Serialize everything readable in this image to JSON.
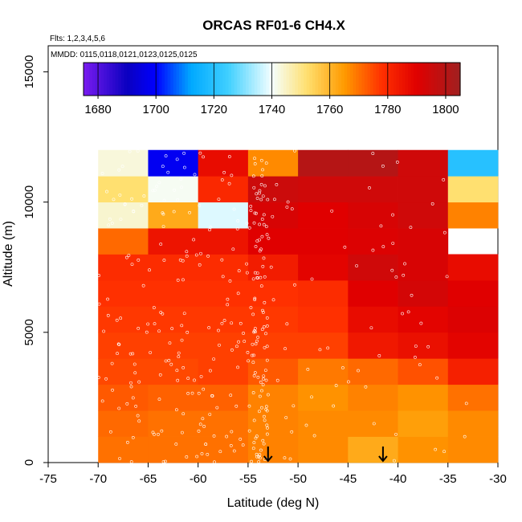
{
  "chart_data": {
    "type": "heatmap",
    "title": "ORCAS RF01-6 CH4.X",
    "flights_label": "Flts: 1,2,3,4,5,6",
    "dates_label": "MMDD: 0115,0118,0121,0123,0125,0125",
    "xlabel": "Latitude (deg N)",
    "ylabel": "Altitude (m)",
    "xlim": [
      -75,
      -30
    ],
    "ylim": [
      0,
      16000
    ],
    "x_ticks": [
      -75,
      -70,
      -65,
      -60,
      -55,
      -50,
      -45,
      -40,
      -35,
      -30
    ],
    "y_ticks": [
      0,
      5000,
      10000,
      15000
    ],
    "x_edges": [
      -70,
      -65,
      -60,
      -55,
      -50,
      -45,
      -40,
      -35,
      -30
    ],
    "y_edges": [
      0,
      1000,
      2000,
      3000,
      4000,
      5000,
      6000,
      7000,
      8000,
      9000,
      10000,
      11000,
      12000
    ],
    "colorbar": {
      "min": 1675,
      "max": 1805,
      "ticks": [
        1680,
        1700,
        1720,
        1740,
        1760,
        1780,
        1800
      ],
      "stops": [
        {
          "v": 1675,
          "c": "#7a1cf0"
        },
        {
          "v": 1690,
          "c": "#0a00c0"
        },
        {
          "v": 1700,
          "c": "#0000ff"
        },
        {
          "v": 1712,
          "c": "#00a8ff"
        },
        {
          "v": 1725,
          "c": "#40d0ff"
        },
        {
          "v": 1740,
          "c": "#f5ffff"
        },
        {
          "v": 1752,
          "c": "#ffe070"
        },
        {
          "v": 1765,
          "c": "#ff9a00"
        },
        {
          "v": 1778,
          "c": "#ff3000"
        },
        {
          "v": 1790,
          "c": "#e00000"
        },
        {
          "v": 1805,
          "c": "#a02020"
        }
      ]
    },
    "cells": [
      [
        1770,
        1770,
        1770,
        1768,
        1767,
        1762,
        1766,
        1767
      ],
      [
        1771,
        1770,
        1770,
        1768,
        1767,
        1767,
        1764,
        1767
      ],
      [
        1773,
        1772,
        1772,
        1768,
        1766,
        1768,
        1766,
        1770
      ],
      [
        1775,
        1775,
        1776,
        1773,
        1769,
        1771,
        1774,
        1782
      ],
      [
        1776,
        1776,
        1776,
        1776,
        1776,
        1784,
        1786,
        1789
      ],
      [
        1777,
        1777,
        1777,
        1777,
        1778,
        1787,
        1789,
        1791
      ],
      [
        1778,
        1778,
        1778,
        1778,
        1779,
        1790,
        1793,
        1790
      ],
      [
        1779,
        1779,
        1779,
        1783,
        1789,
        1794,
        1792,
        1787
      ],
      [
        1771,
        1785,
        1785,
        1790,
        1790,
        1791,
        1792,
        null
      ],
      [
        1744,
        1762,
        1738,
        1792,
        1790,
        1792,
        1794,
        1768
      ],
      [
        1752,
        1741,
        1780,
        1795,
        1794,
        1794,
        1794,
        1752
      ],
      [
        1743,
        1698,
        1787,
        1767,
        1800,
        1800,
        1794,
        1720
      ]
    ],
    "arrows": [
      -53,
      -41.5
    ]
  }
}
